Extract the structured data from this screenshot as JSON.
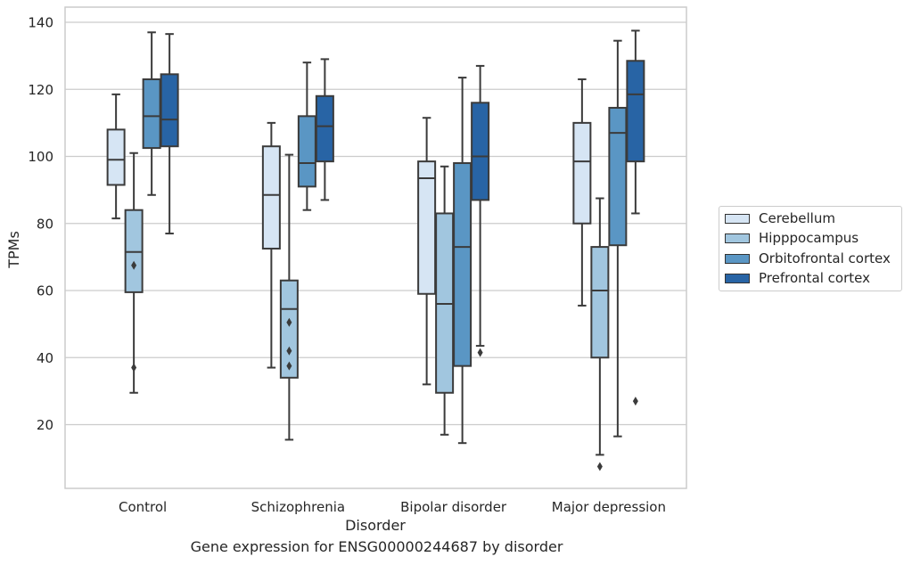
{
  "caption": "Gene expression for ENSG00000244687 by disorder",
  "chart_data": {
    "type": "box",
    "title": "",
    "xlabel": "Disorder",
    "ylabel": "TPMs",
    "ylim": [
      1,
      144
    ],
    "yticks": [
      20,
      40,
      60,
      80,
      100,
      120,
      140
    ],
    "grid": "horizontal",
    "legend_position": "right",
    "categories": [
      "Control",
      "Schizophrenia",
      "Bipolar disorder",
      "Major depression"
    ],
    "series": [
      {
        "name": "Cerebellum",
        "color": "#d6e5f4",
        "boxes": [
          {
            "whisker_low": 81.5,
            "q1": 91.5,
            "median": 99,
            "q3": 108,
            "whisker_high": 118.5,
            "outliers": []
          },
          {
            "whisker_low": 37,
            "q1": 72.5,
            "median": 88.5,
            "q3": 103,
            "whisker_high": 110,
            "outliers": []
          },
          {
            "whisker_low": 32,
            "q1": 59,
            "median": 93.5,
            "q3": 98.5,
            "whisker_high": 111.5,
            "outliers": []
          },
          {
            "whisker_low": 55.5,
            "q1": 80,
            "median": 98.5,
            "q3": 110,
            "whisker_high": 123,
            "outliers": []
          }
        ]
      },
      {
        "name": "Hipppocampus",
        "color": "#a1c6df",
        "boxes": [
          {
            "whisker_low": 29.5,
            "q1": 59.5,
            "median": 71.5,
            "q3": 84,
            "whisker_high": 101,
            "outliers": [
              67.5,
              37
            ]
          },
          {
            "whisker_low": 15.5,
            "q1": 34,
            "median": 54.5,
            "q3": 63,
            "whisker_high": 100.5,
            "outliers": [
              50.5,
              42,
              37.5
            ]
          },
          {
            "whisker_low": 17,
            "q1": 29.5,
            "median": 56,
            "q3": 83,
            "whisker_high": 97,
            "outliers": []
          },
          {
            "whisker_low": 11,
            "q1": 40,
            "median": 60,
            "q3": 73,
            "whisker_high": 87.5,
            "outliers": [
              7.5
            ]
          }
        ]
      },
      {
        "name": "Orbitofrontal cortex",
        "color": "#5a96c4",
        "boxes": [
          {
            "whisker_low": 88.5,
            "q1": 102.5,
            "median": 112,
            "q3": 123,
            "whisker_high": 137,
            "outliers": []
          },
          {
            "whisker_low": 84,
            "q1": 91,
            "median": 98,
            "q3": 112,
            "whisker_high": 128,
            "outliers": []
          },
          {
            "whisker_low": 14.5,
            "q1": 37.5,
            "median": 73,
            "q3": 98,
            "whisker_high": 123.5,
            "outliers": []
          },
          {
            "whisker_low": 16.5,
            "q1": 73.5,
            "median": 107,
            "q3": 114.5,
            "whisker_high": 134.5,
            "outliers": []
          }
        ]
      },
      {
        "name": "Prefrontal cortex",
        "color": "#2864a5",
        "boxes": [
          {
            "whisker_low": 77,
            "q1": 103,
            "median": 111,
            "q3": 124.5,
            "whisker_high": 136.5,
            "outliers": []
          },
          {
            "whisker_low": 87,
            "q1": 98.5,
            "median": 109,
            "q3": 118,
            "whisker_high": 129,
            "outliers": []
          },
          {
            "whisker_low": 43.5,
            "q1": 87,
            "median": 100,
            "q3": 116,
            "whisker_high": 127,
            "outliers": [
              41.5
            ]
          },
          {
            "whisker_low": 83,
            "q1": 98.5,
            "median": 118.5,
            "q3": 128.5,
            "whisker_high": 137.5,
            "outliers": [
              27
            ]
          }
        ]
      }
    ]
  }
}
